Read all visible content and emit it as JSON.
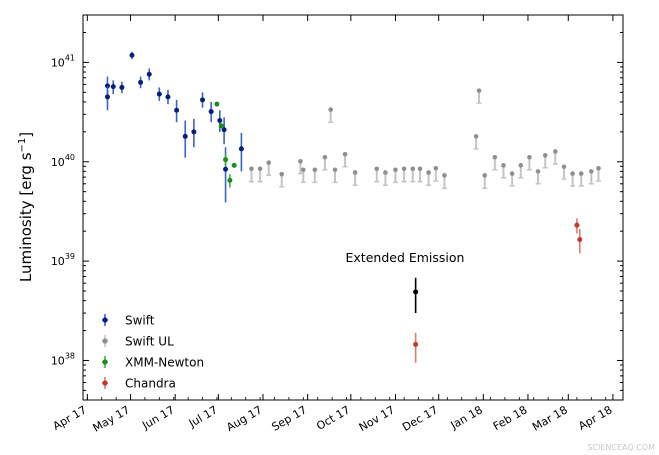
{
  "chart_data": {
    "type": "scatter",
    "title": "",
    "xlabel": "",
    "ylabel_parts": [
      "Luminosity [erg s",
      "−1",
      "]"
    ],
    "yscale": "log",
    "ylim": [
      4e+37,
      3e+41
    ],
    "y_ticks": [
      {
        "value": 1e+38,
        "base": "10",
        "exp": "38"
      },
      {
        "value": 1e+39,
        "base": "10",
        "exp": "39"
      },
      {
        "value": 1e+40,
        "base": "10",
        "exp": "40"
      },
      {
        "value": 1e+41,
        "base": "10",
        "exp": "41"
      }
    ],
    "xlim": [
      -3,
      372
    ],
    "x_ticks": [
      {
        "label": "Apr 17",
        "day": 0
      },
      {
        "label": "May 17",
        "day": 30
      },
      {
        "label": "Jun 17",
        "day": 61
      },
      {
        "label": "Jul 17",
        "day": 91
      },
      {
        "label": "Aug 17",
        "day": 122
      },
      {
        "label": "Sep 17",
        "day": 153
      },
      {
        "label": "Oct 17",
        "day": 183
      },
      {
        "label": "Nov 17",
        "day": 214
      },
      {
        "label": "Dec 17",
        "day": 244
      },
      {
        "label": "Jan 18",
        "day": 275
      },
      {
        "label": "Feb 18",
        "day": 306
      },
      {
        "label": "Mar 18",
        "day": 334
      },
      {
        "label": "Apr 18",
        "day": 365
      }
    ],
    "legend": [
      "Swift",
      "Swift UL",
      "XMM-Newton",
      "Chandra"
    ],
    "legend_position": "lower-left",
    "annotation": "Extended Emission",
    "annotation_anchor": {
      "day": 228,
      "value": 1e+39
    },
    "watermark": "SCIENCEAQ.COM",
    "series": [
      {
        "name": "Swift",
        "color": "#0a1f7a",
        "errcolor": "#3a63c8",
        "kind": "errorbar",
        "points": [
          {
            "x": 14,
            "y": 5.8e+40,
            "lo": 4.6e+40,
            "hi": 7.2e+40
          },
          {
            "x": 14,
            "y": 4.5e+40,
            "lo": 3.3e+40,
            "hi": 5.7e+40
          },
          {
            "x": 18,
            "y": 5.7e+40,
            "lo": 4.8e+40,
            "hi": 6.6e+40
          },
          {
            "x": 24,
            "y": 5.6e+40,
            "lo": 4.9e+40,
            "hi": 6.4e+40
          },
          {
            "x": 31,
            "y": 1.18e+41,
            "lo": 1.08e+41,
            "hi": 1.28e+41
          },
          {
            "x": 37,
            "y": 6.3e+40,
            "lo": 5.5e+40,
            "hi": 7.2e+40
          },
          {
            "x": 43,
            "y": 7.6e+40,
            "lo": 6.6e+40,
            "hi": 8.7e+40
          },
          {
            "x": 50,
            "y": 4.8e+40,
            "lo": 4.1e+40,
            "hi": 5.6e+40
          },
          {
            "x": 56,
            "y": 4.5e+40,
            "lo": 3.8e+40,
            "hi": 5.3e+40
          },
          {
            "x": 62,
            "y": 3.3e+40,
            "lo": 2.5e+40,
            "hi": 4.2e+40
          },
          {
            "x": 68,
            "y": 1.8e+40,
            "lo": 1.1e+40,
            "hi": 2.6e+40
          },
          {
            "x": 74,
            "y": 2e+40,
            "lo": 1.4e+40,
            "hi": 2.7e+40
          },
          {
            "x": 80,
            "y": 4.2e+40,
            "lo": 3.5e+40,
            "hi": 5e+40
          },
          {
            "x": 86,
            "y": 3.2e+40,
            "lo": 2.5e+40,
            "hi": 4e+40
          },
          {
            "x": 92,
            "y": 2.6e+40,
            "lo": 2e+40,
            "hi": 3.3e+40
          },
          {
            "x": 95,
            "y": 2.1e+40,
            "lo": 1.5e+40,
            "hi": 2.8e+40
          },
          {
            "x": 96,
            "y": 8.4e+39,
            "lo": 3.9e+39,
            "hi": 1.4e+40
          },
          {
            "x": 107,
            "y": 1.35e+40,
            "lo": 8e+39,
            "hi": 1.95e+40
          }
        ]
      },
      {
        "name": "Swift UL",
        "color": "#8f8f8f",
        "errcolor": "#c4c4c4",
        "kind": "upper_limit",
        "points": [
          {
            "x": 114,
            "y": 8.5e+39,
            "lo": 6.3e+39
          },
          {
            "x": 120,
            "y": 8.5e+39,
            "lo": 6.3e+39
          },
          {
            "x": 126,
            "y": 9.8e+39,
            "lo": 7.3e+39
          },
          {
            "x": 135,
            "y": 7.5e+39,
            "lo": 5.6e+39
          },
          {
            "x": 148,
            "y": 1.01e+40,
            "lo": 7.6e+39
          },
          {
            "x": 150,
            "y": 8.3e+39,
            "lo": 6.2e+39
          },
          {
            "x": 158,
            "y": 8.3e+39,
            "lo": 6.2e+39
          },
          {
            "x": 165,
            "y": 1.11e+40,
            "lo": 8.3e+39
          },
          {
            "x": 169,
            "y": 3.35e+40,
            "lo": 2.5e+40
          },
          {
            "x": 172,
            "y": 8.3e+39,
            "lo": 6.2e+39
          },
          {
            "x": 179,
            "y": 1.19e+40,
            "lo": 8.9e+39
          },
          {
            "x": 186,
            "y": 7.8e+39,
            "lo": 5.8e+39
          },
          {
            "x": 201,
            "y": 8.5e+39,
            "lo": 6.3e+39
          },
          {
            "x": 207,
            "y": 7.8e+39,
            "lo": 5.8e+39
          },
          {
            "x": 214,
            "y": 8.3e+39,
            "lo": 6.2e+39
          },
          {
            "x": 220,
            "y": 8.5e+39,
            "lo": 6.3e+39
          },
          {
            "x": 226,
            "y": 8.5e+39,
            "lo": 6.3e+39
          },
          {
            "x": 231,
            "y": 8.5e+39,
            "lo": 6.3e+39
          },
          {
            "x": 237,
            "y": 7.8e+39,
            "lo": 5.8e+39
          },
          {
            "x": 242,
            "y": 8.6e+39,
            "lo": 6.4e+39
          },
          {
            "x": 248,
            "y": 7.3e+39,
            "lo": 5.4e+39
          },
          {
            "x": 270,
            "y": 1.8e+40,
            "lo": 1.35e+40
          },
          {
            "x": 272,
            "y": 5.2e+40,
            "lo": 3.9e+40
          },
          {
            "x": 276,
            "y": 7.3e+39,
            "lo": 5.4e+39
          },
          {
            "x": 283,
            "y": 1.11e+40,
            "lo": 8.3e+39
          },
          {
            "x": 289,
            "y": 9.2e+39,
            "lo": 6.9e+39
          },
          {
            "x": 295,
            "y": 7.6e+39,
            "lo": 5.7e+39
          },
          {
            "x": 301,
            "y": 9.2e+39,
            "lo": 6.9e+39
          },
          {
            "x": 307,
            "y": 1.11e+40,
            "lo": 8.3e+39
          },
          {
            "x": 313,
            "y": 8e+39,
            "lo": 6e+39
          },
          {
            "x": 318,
            "y": 1.16e+40,
            "lo": 8.7e+39
          },
          {
            "x": 325,
            "y": 1.27e+40,
            "lo": 9.5e+39
          },
          {
            "x": 331,
            "y": 8.9e+39,
            "lo": 6.7e+39
          },
          {
            "x": 337,
            "y": 7.6e+39,
            "lo": 5.7e+39
          },
          {
            "x": 343,
            "y": 7.6e+39,
            "lo": 5.7e+39
          },
          {
            "x": 350,
            "y": 8e+39,
            "lo": 6e+39
          },
          {
            "x": 355,
            "y": 8.6e+39,
            "lo": 6.4e+39
          }
        ]
      },
      {
        "name": "XMM-Newton",
        "color": "#1f8a1f",
        "errcolor": "#3cb43c",
        "kind": "errorbar",
        "points": [
          {
            "x": 90,
            "y": 3.8e+40,
            "lo": 3.6e+40,
            "hi": 4e+40
          },
          {
            "x": 93,
            "y": 2.3e+40,
            "lo": 2.2e+40,
            "hi": 2.45e+40
          },
          {
            "x": 96,
            "y": 1.05e+40,
            "lo": 9e+39,
            "hi": 1.2e+40
          },
          {
            "x": 99,
            "y": 6.5e+39,
            "lo": 5.5e+39,
            "hi": 7.5e+39
          },
          {
            "x": 102,
            "y": 9.2e+39,
            "lo": 8.8e+39,
            "hi": 9.6e+39
          }
        ]
      },
      {
        "name": "Chandra",
        "color": "#c0392b",
        "errcolor": "#e07a6c",
        "kind": "errorbar",
        "points": [
          {
            "x": 228,
            "y": 1.45e+38,
            "lo": 9.5e+37,
            "hi": 1.9e+38
          },
          {
            "x": 340,
            "y": 2.3e+39,
            "lo": 1.9e+39,
            "hi": 2.7e+39
          },
          {
            "x": 342,
            "y": 1.65e+39,
            "lo": 1.2e+39,
            "hi": 2.1e+39
          }
        ]
      },
      {
        "name": "Extended Emission",
        "color": "#000000",
        "errcolor": "#000000",
        "kind": "errorbar",
        "points": [
          {
            "x": 228,
            "y": 4.9e+38,
            "lo": 3e+38,
            "hi": 6.8e+38
          }
        ]
      }
    ]
  }
}
